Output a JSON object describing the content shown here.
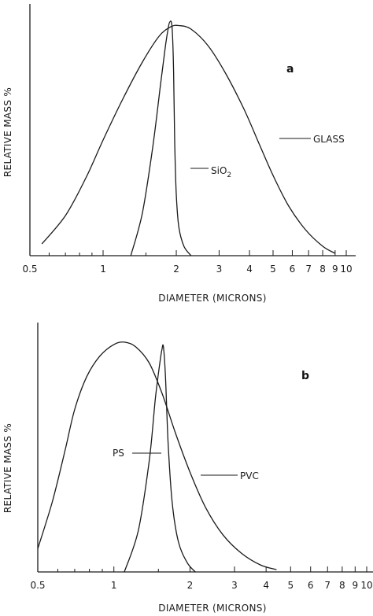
{
  "chart_data": [
    {
      "type": "line",
      "panel_label": "a",
      "xlabel": "DIAMETER (MICRONS)",
      "ylabel": "RELATIVE MASS %",
      "xscale": "log",
      "xlim": [
        0.5,
        10
      ],
      "ylim": [
        0,
        100
      ],
      "x_tick_labels": [
        "0.5",
        "1",
        "2",
        "3",
        "4",
        "5",
        "6",
        "7",
        "8",
        "9",
        "10"
      ],
      "x_ticks": [
        0.5,
        1,
        2,
        3,
        4,
        5,
        6,
        7,
        8,
        9,
        10
      ],
      "minor_ticks": [
        0.6,
        0.7,
        0.8,
        0.9,
        1.5
      ],
      "grid": false,
      "series": [
        {
          "name": "GLASS",
          "x": [
            0.56,
            0.7,
            0.85,
            1.0,
            1.2,
            1.45,
            1.7,
            1.9,
            2.05,
            2.3,
            2.7,
            3.2,
            3.8,
            4.4,
            5.0,
            5.8,
            6.8,
            8.0,
            9.0
          ],
          "y": [
            5,
            17,
            33,
            49,
            66,
            82,
            93,
            97,
            97.5,
            96,
            89,
            77,
            62,
            47,
            34,
            21,
            11,
            4,
            1
          ]
        },
        {
          "name": "SiO2",
          "x": [
            1.3,
            1.45,
            1.6,
            1.72,
            1.8,
            1.85,
            1.88,
            1.92,
            1.95,
            1.97,
            2.0,
            2.05,
            2.15,
            2.3
          ],
          "y": [
            0,
            18,
            46,
            72,
            88,
            96,
            99,
            97,
            78,
            48,
            26,
            12,
            4,
            0
          ]
        }
      ]
    },
    {
      "type": "line",
      "panel_label": "b",
      "xlabel": "DIAMETER (MICRONS)",
      "ylabel": "RELATIVE MASS %",
      "xscale": "log",
      "xlim": [
        0.5,
        10
      ],
      "ylim": [
        0,
        100
      ],
      "x_tick_labels": [
        "0.5",
        "1",
        "2",
        "3",
        "4",
        "5",
        "6",
        "7",
        "8",
        "9",
        "10"
      ],
      "x_ticks": [
        0.5,
        1,
        2,
        3,
        4,
        5,
        6,
        7,
        8,
        9,
        10
      ],
      "minor_ticks": [
        0.6,
        0.7,
        0.8,
        0.9,
        1.5
      ],
      "grid": false,
      "series": [
        {
          "name": "PVC",
          "x": [
            0.5,
            0.57,
            0.64,
            0.7,
            0.78,
            0.88,
            1.0,
            1.1,
            1.22,
            1.38,
            1.55,
            1.75,
            2.0,
            2.3,
            2.7,
            3.2,
            3.8,
            4.4
          ],
          "y": [
            10,
            30,
            52,
            70,
            84,
            93,
            98,
            99,
            97,
            90,
            77,
            60,
            43,
            28,
            16,
            8,
            3,
            1
          ]
        },
        {
          "name": "PS",
          "x": [
            1.1,
            1.25,
            1.38,
            1.46,
            1.52,
            1.55,
            1.57,
            1.6,
            1.64,
            1.7,
            1.8,
            1.95,
            2.1
          ],
          "y": [
            0,
            18,
            48,
            75,
            90,
            96,
            97,
            84,
            55,
            30,
            13,
            4,
            0
          ]
        }
      ]
    }
  ]
}
